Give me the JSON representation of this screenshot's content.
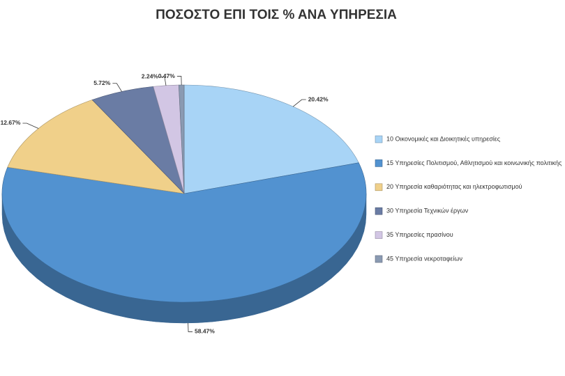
{
  "chart_data": {
    "type": "pie",
    "title": "ΠΟΣΟΣΤΟ ΕΠΙ ΤΟΙΣ % ΑΝΑ ΥΠΗΡΕΣΙΑ",
    "categories": [
      "10 Οικονομικές και Διοικητικές υπηρεσίες",
      "15 Υπηρεσίες Πολιτισμού, Αθλητισμού και κοινωνικής πολιτικής",
      "20 Υπηρεσία καθαριότητας και ηλεκτροφωτισμού",
      "30 Υπηρεσία Τεχνικών έργων",
      "35 Υπηρεσίες πρασίνου",
      "45 Υπηρεσία νεκροταφείων"
    ],
    "values": [
      20.42,
      58.47,
      12.67,
      5.72,
      2.24,
      0.47
    ],
    "value_labels": [
      "20.42%",
      "58.47%",
      "12.67%",
      "5.72%",
      "2.24%",
      "0.47%"
    ],
    "colors": [
      "#a8d4f6",
      "#5292d0",
      "#f0d08a",
      "#6a7ca4",
      "#d2c6e4",
      "#8a9ab2"
    ],
    "legend": "right"
  }
}
